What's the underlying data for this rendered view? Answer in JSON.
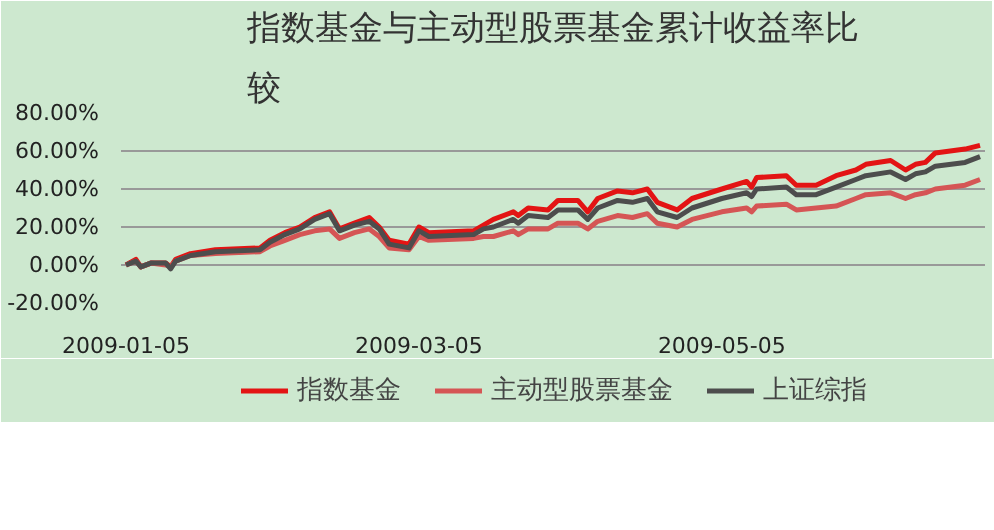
{
  "chart_data": {
    "type": "line",
    "title": "指数基金与主动型股票基金累计收益率比较",
    "x": [
      "2009-01-05",
      "2009-01-07",
      "2009-01-08",
      "2009-01-10",
      "2009-01-13",
      "2009-01-14",
      "2009-01-15",
      "2009-01-18",
      "2009-01-23",
      "2009-02-01",
      "2009-02-03",
      "2009-02-06",
      "2009-02-09",
      "2009-02-12",
      "2009-02-15",
      "2009-02-17",
      "2009-02-20",
      "2009-02-23",
      "2009-02-25",
      "2009-02-27",
      "2009-03-03",
      "2009-03-05",
      "2009-03-07",
      "2009-03-16",
      "2009-03-18",
      "2009-03-20",
      "2009-03-24",
      "2009-03-25",
      "2009-03-27",
      "2009-03-31",
      "2009-04-02",
      "2009-04-06",
      "2009-04-08",
      "2009-04-10",
      "2009-04-14",
      "2009-04-17",
      "2009-04-20",
      "2009-04-22",
      "2009-04-26",
      "2009-04-29",
      "2009-05-05",
      "2009-05-10",
      "2009-05-11",
      "2009-05-12",
      "2009-05-18",
      "2009-05-20",
      "2009-05-24",
      "2009-05-28",
      "2009-06-01",
      "2009-06-03",
      "2009-06-08",
      "2009-06-11",
      "2009-06-13",
      "2009-06-15",
      "2009-06-17",
      "2009-06-23",
      "2009-06-26"
    ],
    "series": [
      {
        "name": "指数基金",
        "color": "#e31414",
        "values": [
          0,
          3,
          -1,
          1,
          1,
          -1,
          3,
          6,
          8,
          9,
          13,
          17,
          20,
          25,
          28,
          19,
          22,
          25,
          20,
          13,
          11,
          20,
          17,
          18,
          21,
          24,
          28,
          26,
          30,
          29,
          34,
          34,
          28,
          35,
          39,
          38,
          40,
          33,
          29,
          35,
          40,
          44,
          41,
          46,
          47,
          42,
          42,
          47,
          50,
          53,
          55,
          50,
          53,
          54,
          59,
          61,
          63
        ]
      },
      {
        "name": "主动型股票基金",
        "color": "#d55555",
        "values": [
          0,
          2,
          -1,
          1,
          0,
          -1,
          2,
          5,
          6,
          7,
          10,
          13,
          16,
          18,
          19,
          14,
          17,
          19,
          15,
          9,
          8,
          15,
          13,
          14,
          15,
          15,
          18,
          16,
          19,
          19,
          22,
          22,
          19,
          23,
          26,
          25,
          27,
          22,
          20,
          24,
          28,
          30,
          28,
          31,
          32,
          29,
          30,
          31,
          35,
          37,
          38,
          35,
          37,
          38,
          40,
          42,
          45
        ]
      },
      {
        "name": "上证综指",
        "color": "#4d4d4d",
        "values": [
          0,
          2,
          -1,
          1,
          1,
          -2,
          2,
          5,
          7,
          8,
          12,
          16,
          19,
          24,
          27,
          18,
          21,
          23,
          19,
          11,
          9,
          18,
          15,
          16,
          19,
          20,
          24,
          22,
          26,
          25,
          29,
          29,
          24,
          30,
          34,
          33,
          35,
          28,
          25,
          30,
          35,
          38,
          36,
          40,
          41,
          37,
          37,
          41,
          45,
          47,
          49,
          45,
          48,
          49,
          52,
          54,
          57
        ]
      }
    ],
    "xlim": [
      "2009-01-04",
      "2009-06-27"
    ],
    "xticks": [
      "2009-01-05",
      "2009-03-05",
      "2009-05-05"
    ],
    "ylim": [
      -20,
      80
    ],
    "yticks": [
      {
        "value": -20,
        "label": "-20.00%"
      },
      {
        "value": 0,
        "label": "0.00%"
      },
      {
        "value": 20,
        "label": "20.00%"
      },
      {
        "value": 40,
        "label": "40.00%"
      },
      {
        "value": 60,
        "label": "60.00%"
      },
      {
        "value": 80,
        "label": "80.00%"
      }
    ],
    "grid": "y",
    "legend": "bottom",
    "line_style": "solid"
  }
}
